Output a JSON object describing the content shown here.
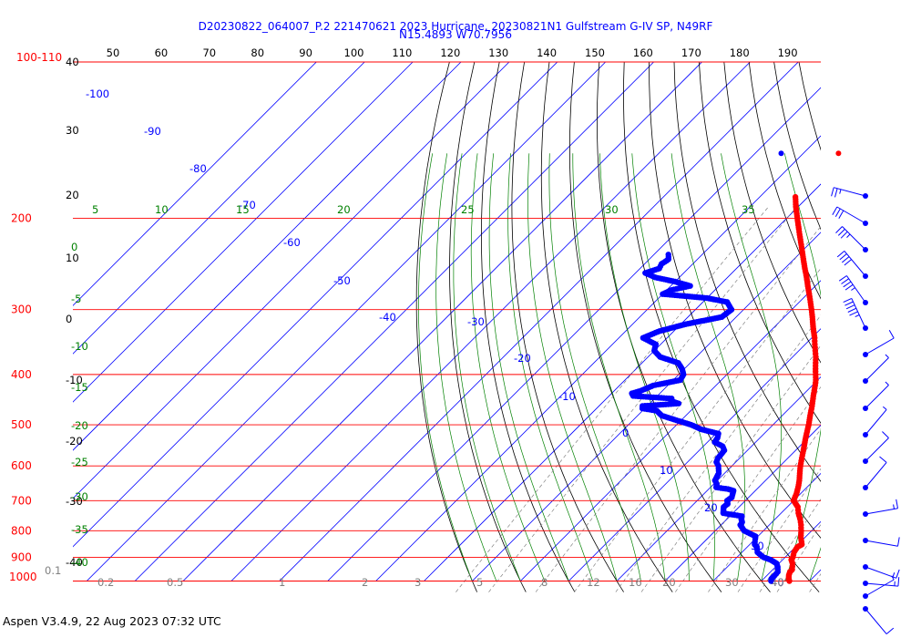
{
  "header": {
    "line1": "D20230822_064007_P.2 221470621 2023 Hurricane, 20230821N1 Gulfstream G-IV SP, N49RF",
    "line2": "N15.4893 W70.7956"
  },
  "footer": {
    "text": "Aspen V3.4.9, 22 Aug 2023  07:32 UTC"
  },
  "colors": {
    "isobar": "#ff0000",
    "isotherm": "#0000ff",
    "dry_adiabat": "#000000",
    "moist_adiabat": "#008000",
    "mixing_ratio": "#808080",
    "temperature": "#ff0000",
    "dewpoint": "#0000ff",
    "wind": "#0000ff"
  },
  "chart_data": {
    "type": "scatter",
    "subtype": "skew-T log-P diagram",
    "top_axis_ticks": [
      "50",
      "60",
      "70",
      "80",
      "90",
      "100",
      "110",
      "120",
      "130",
      "140",
      "150",
      "160",
      "170",
      "180",
      "190"
    ],
    "pressure_labels": [
      {
        "p": 100,
        "label": "100-110"
      },
      {
        "p": 200,
        "label": "200"
      },
      {
        "p": 300,
        "label": "300"
      },
      {
        "p": 400,
        "label": "400"
      },
      {
        "p": 500,
        "label": "500"
      },
      {
        "p": 600,
        "label": "600"
      },
      {
        "p": 700,
        "label": "700"
      },
      {
        "p": 800,
        "label": "800"
      },
      {
        "p": 900,
        "label": "900"
      },
      {
        "p": 1000,
        "label": "1000"
      }
    ],
    "left_black_labels": [
      "40",
      "30",
      "20",
      "10",
      "0",
      "-10",
      "-20",
      "-30",
      "-40"
    ],
    "left_green_labels": [
      "0",
      "-5",
      "-10",
      "-15",
      "-20",
      "-25",
      "-30",
      "-35",
      "-40"
    ],
    "isotherm_labels": [
      "-100",
      "-90",
      "-80",
      "-70",
      "-60",
      "-50",
      "-40",
      "-30",
      "-20",
      "-10",
      "0",
      "10",
      "20",
      "30",
      "40"
    ],
    "moist_adiabat_labels": [
      "5",
      "10",
      "15",
      "20",
      "25",
      "30",
      "35"
    ],
    "mixing_ratio_labels": [
      "0.1",
      "0.2",
      "0.5",
      "1",
      "2",
      "3",
      "5",
      "8",
      "12",
      "16",
      "20",
      "30",
      "40"
    ],
    "temperature_profile": [
      [
        1000,
        25.8
      ],
      [
        990,
        25.2
      ],
      [
        975,
        24.5
      ],
      [
        960,
        24.0
      ],
      [
        950,
        24.0
      ],
      [
        925,
        22.8
      ],
      [
        910,
        21.8
      ],
      [
        900,
        21.6
      ],
      [
        880,
        20.8
      ],
      [
        860,
        20.4
      ],
      [
        850,
        20.8
      ],
      [
        825,
        19.2
      ],
      [
        800,
        17.8
      ],
      [
        780,
        16.6
      ],
      [
        760,
        15.2
      ],
      [
        740,
        13.6
      ],
      [
        720,
        12.2
      ],
      [
        700,
        10.0
      ],
      [
        680,
        9.2
      ],
      [
        660,
        8.2
      ],
      [
        640,
        7.0
      ],
      [
        620,
        5.6
      ],
      [
        600,
        4.2
      ],
      [
        580,
        2.9
      ],
      [
        560,
        1.6
      ],
      [
        540,
        0.2
      ],
      [
        520,
        -1.2
      ],
      [
        500,
        -2.6
      ],
      [
        480,
        -4.2
      ],
      [
        460,
        -5.8
      ],
      [
        440,
        -7.6
      ],
      [
        420,
        -9.4
      ],
      [
        410,
        -10.4
      ],
      [
        400,
        -11.6
      ],
      [
        390,
        -12.8
      ],
      [
        380,
        -14.0
      ],
      [
        370,
        -15.2
      ],
      [
        360,
        -16.6
      ],
      [
        350,
        -18.0
      ],
      [
        340,
        -19.4
      ],
      [
        330,
        -21.0
      ],
      [
        320,
        -22.6
      ],
      [
        310,
        -24.2
      ],
      [
        300,
        -25.9
      ],
      [
        290,
        -27.7
      ],
      [
        280,
        -29.6
      ],
      [
        270,
        -31.6
      ],
      [
        260,
        -33.6
      ],
      [
        250,
        -35.8
      ],
      [
        240,
        -38.0
      ],
      [
        230,
        -40.3
      ],
      [
        220,
        -42.7
      ],
      [
        210,
        -45.2
      ],
      [
        200,
        -47.8
      ],
      [
        190,
        -50.5
      ],
      [
        182,
        -52.6
      ]
    ],
    "dewpoint_profile": [
      [
        1000,
        22.0
      ],
      [
        990,
        21.6
      ],
      [
        975,
        21.6
      ],
      [
        960,
        21.5
      ],
      [
        940,
        20.5
      ],
      [
        925,
        19.5
      ],
      [
        910,
        17.5
      ],
      [
        900,
        15.5
      ],
      [
        880,
        13.2
      ],
      [
        860,
        12.0
      ],
      [
        850,
        11.0
      ],
      [
        830,
        10.0
      ],
      [
        820,
        9.5
      ],
      [
        800,
        6.0
      ],
      [
        790,
        5.0
      ],
      [
        780,
        4.0
      ],
      [
        770,
        3.8
      ],
      [
        760,
        3.0
      ],
      [
        750,
        2.5
      ],
      [
        740,
        -2.0
      ],
      [
        730,
        -2.6
      ],
      [
        720,
        -3.2
      ],
      [
        710,
        -3.0
      ],
      [
        700,
        -3.8
      ],
      [
        690,
        -3.5
      ],
      [
        680,
        -4.0
      ],
      [
        670,
        -4.5
      ],
      [
        665,
        -6.0
      ],
      [
        660,
        -8.8
      ],
      [
        650,
        -9.4
      ],
      [
        640,
        -10.5
      ],
      [
        620,
        -11.2
      ],
      [
        600,
        -12.8
      ],
      [
        590,
        -14.0
      ],
      [
        580,
        -14.5
      ],
      [
        560,
        -14.8
      ],
      [
        550,
        -16.0
      ],
      [
        540,
        -18.5
      ],
      [
        530,
        -18.8
      ],
      [
        520,
        -19.5
      ],
      [
        510,
        -24.0
      ],
      [
        500,
        -27.0
      ],
      [
        490,
        -31.0
      ],
      [
        480,
        -35.0
      ],
      [
        470,
        -37.0
      ],
      [
        465,
        -40.5
      ],
      [
        460,
        -41.0
      ],
      [
        455,
        -34.0
      ],
      [
        450,
        -36.0
      ],
      [
        445,
        -36.5
      ],
      [
        440,
        -45.0
      ],
      [
        435,
        -45.8
      ],
      [
        430,
        -44.5
      ],
      [
        420,
        -43.0
      ],
      [
        410,
        -38.5
      ],
      [
        400,
        -39.0
      ],
      [
        390,
        -40.5
      ],
      [
        380,
        -42.5
      ],
      [
        370,
        -47.5
      ],
      [
        360,
        -50.0
      ],
      [
        350,
        -51.0
      ],
      [
        340,
        -55.0
      ],
      [
        330,
        -53.0
      ],
      [
        320,
        -49.0
      ],
      [
        310,
        -43.0
      ],
      [
        300,
        -42.5
      ],
      [
        290,
        -45.0
      ],
      [
        285,
        -50.0
      ],
      [
        280,
        -60.0
      ],
      [
        275,
        -59.0
      ],
      [
        270,
        -56.0
      ],
      [
        265,
        -60.0
      ],
      [
        260,
        -65.0
      ],
      [
        255,
        -68.0
      ],
      [
        250,
        -66.0
      ],
      [
        245,
        -66.5
      ],
      [
        240,
        -66.0
      ],
      [
        235,
        -67.0
      ]
    ],
    "isolated_points": [
      {
        "p": 150,
        "t": -64.6,
        "series": "dewpoint"
      },
      {
        "p": 150,
        "t": -52.7,
        "series": "temperature"
      }
    ],
    "wind_barbs": [
      {
        "p": 164,
        "speed_kt": 25,
        "dir_deg": 285
      },
      {
        "p": 180,
        "speed_kt": 30,
        "dir_deg": 300
      },
      {
        "p": 199,
        "speed_kt": 35,
        "dir_deg": 315
      },
      {
        "p": 219,
        "speed_kt": 40,
        "dir_deg": 320
      },
      {
        "p": 239,
        "speed_kt": 45,
        "dir_deg": 325
      },
      {
        "p": 262,
        "speed_kt": 55,
        "dir_deg": 335
      },
      {
        "p": 287,
        "speed_kt": 10,
        "dir_deg": 60
      },
      {
        "p": 315,
        "speed_kt": 5,
        "dir_deg": 45
      },
      {
        "p": 345,
        "speed_kt": 5,
        "dir_deg": 45
      },
      {
        "p": 378,
        "speed_kt": 5,
        "dir_deg": 40
      },
      {
        "p": 415,
        "speed_kt": 10,
        "dir_deg": 45
      },
      {
        "p": 452,
        "speed_kt": 10,
        "dir_deg": 40
      },
      {
        "p": 495,
        "speed_kt": 15,
        "dir_deg": 80
      },
      {
        "p": 542,
        "speed_kt": 10,
        "dir_deg": 100
      },
      {
        "p": 593,
        "speed_kt": 15,
        "dir_deg": 110
      },
      {
        "p": 649,
        "speed_kt": 15,
        "dir_deg": 95
      },
      {
        "p": 710,
        "speed_kt": 5,
        "dir_deg": 60
      },
      {
        "p": 778,
        "speed_kt": 10,
        "dir_deg": 140
      }
    ]
  }
}
